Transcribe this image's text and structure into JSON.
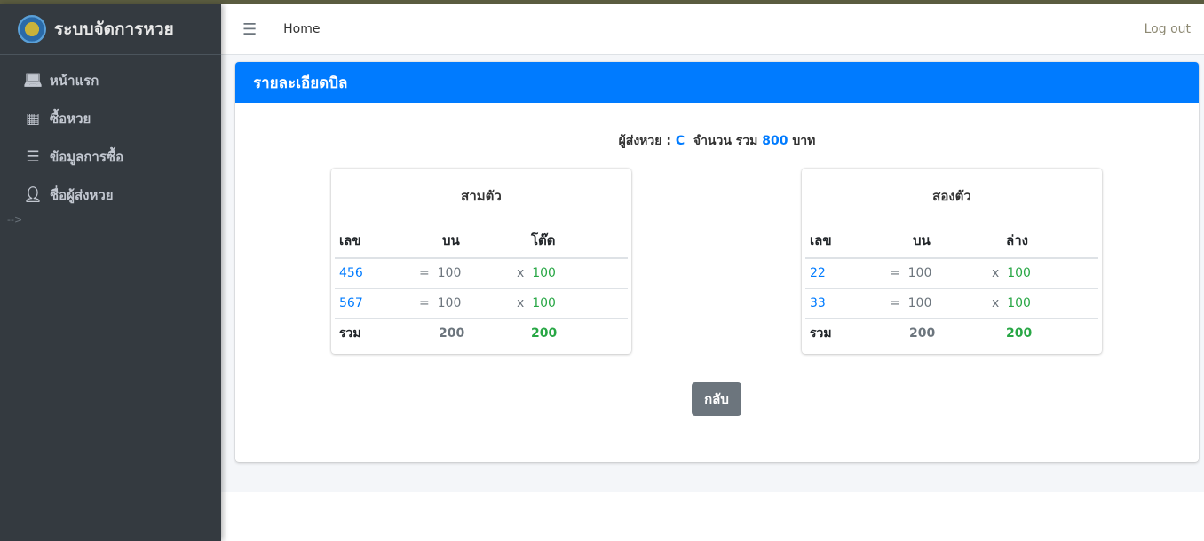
{
  "app": {
    "title": "ระบบจัดการหวย"
  },
  "sidebar": {
    "items": [
      {
        "label": "หน้าแรก",
        "icon": "laptop-icon"
      },
      {
        "label": "ซื้อหวย",
        "icon": "grid-icon"
      },
      {
        "label": "ข้อมูลการซื้อ",
        "icon": "list-icon"
      },
      {
        "label": "ชื่อผู้ส่งหวย",
        "icon": "user-graduate-icon"
      }
    ],
    "stray_text": "-->"
  },
  "navbar": {
    "home": "Home",
    "logout": "Log out"
  },
  "card": {
    "title": "รายละเอียดบิล",
    "summary": {
      "sender_label": "ผู้ส่งหวย :",
      "sender": "C",
      "amount_label": "จำนวน  รวม",
      "total": "800",
      "unit": "บาท"
    },
    "back_label": "กลับ"
  },
  "three": {
    "title": "สามตัว",
    "headers": [
      "เลข",
      "บน",
      "โต๊ด"
    ],
    "rows": [
      {
        "num": "456",
        "top": "100",
        "tod": "100"
      },
      {
        "num": "567",
        "top": "100",
        "tod": "100"
      }
    ],
    "total_label": "รวม",
    "total_top": "200",
    "total_tod": "200"
  },
  "two": {
    "title": "สองตัว",
    "headers": [
      "เลข",
      "บน",
      "ล่าง"
    ],
    "rows": [
      {
        "num": "22",
        "top": "100",
        "tod": "100"
      },
      {
        "num": "33",
        "top": "100",
        "tod": "100"
      }
    ],
    "total_label": "รวม",
    "total_top": "200",
    "total_tod": "200"
  },
  "colors": {
    "primary": "#007bff",
    "success": "#28a745",
    "sidebar": "#343a40",
    "secondary": "#6c757d"
  }
}
